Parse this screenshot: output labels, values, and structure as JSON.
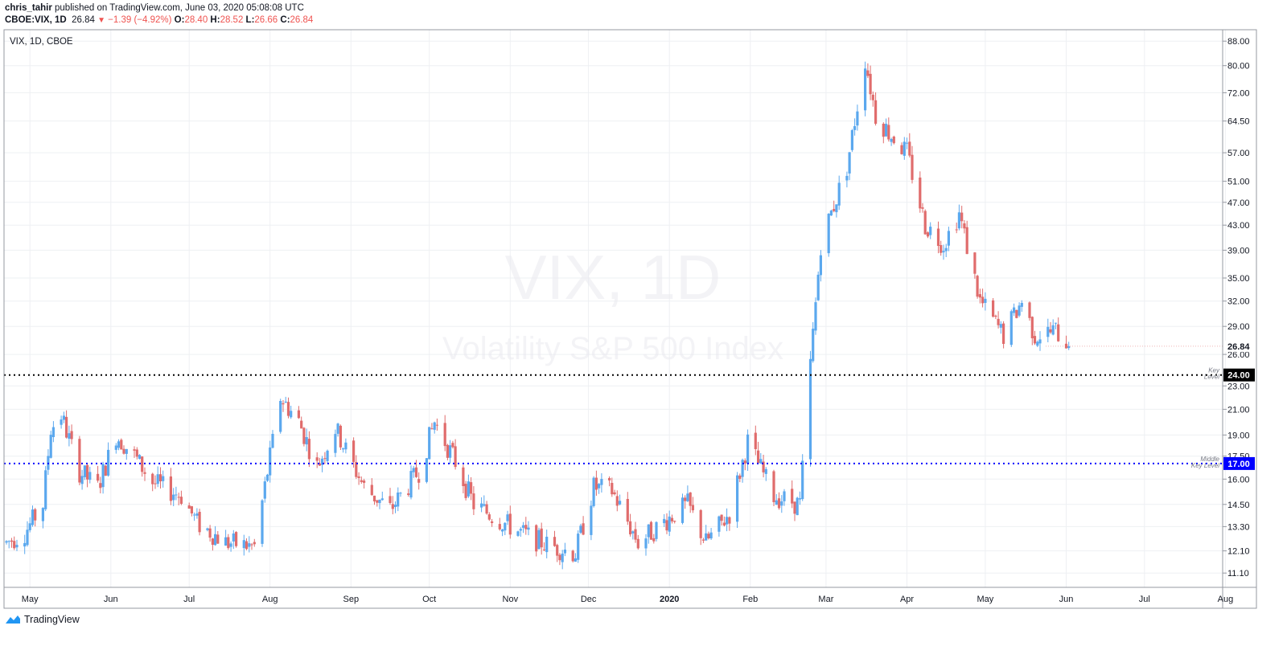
{
  "header": {
    "author": "chris_tahir",
    "published_text": "published on TradingView.com, June 03, 2020 05:08:08 UTC",
    "symbol": "CBOE:VIX, 1D",
    "last": "26.84",
    "change": "−1.39 (−4.92%)",
    "o_label": "O:",
    "o_value": "28.40",
    "h_label": "H:",
    "h_value": "28.52",
    "l_label": "L:",
    "l_value": "26.66",
    "c_label": "C:",
    "c_value": "26.84"
  },
  "chart_label": "VIX, 1D, CBOE",
  "watermark": {
    "title": "VIX, 1D",
    "subtitle": "Volatility S&P 500 Index"
  },
  "footer": {
    "brand": "TradingView"
  },
  "colors": {
    "up": "#5ba8ee",
    "down": "#e06c6c",
    "key": "#000000",
    "middle": "#0000ff"
  },
  "chart_data": {
    "type": "candlestick",
    "scale": "log",
    "y_ticks": [
      "88.00",
      "80.00",
      "72.00",
      "64.50",
      "57.00",
      "51.00",
      "47.00",
      "43.00",
      "39.00",
      "35.00",
      "32.00",
      "29.00",
      "26.00",
      "23.00",
      "21.00",
      "19.00",
      "17.50",
      "16.00",
      "14.50",
      "13.30",
      "12.10",
      "11.10"
    ],
    "x_labels": [
      "May",
      "Jun",
      "Jul",
      "Aug",
      "Sep",
      "Oct",
      "Nov",
      "Dec",
      "2020",
      "Feb",
      "Mar",
      "Apr",
      "May",
      "Jun",
      "Jul",
      "Aug"
    ],
    "last_price": "26.84",
    "levels": [
      {
        "name": "Key Level",
        "line1": "Key",
        "line2": "Level",
        "value": 24.0,
        "label": "24.00",
        "color": "#000000"
      },
      {
        "name": "Middle Key Level",
        "line1": "Middle",
        "line2": "Key Level",
        "value": 17.0,
        "label": "17.00",
        "color": "#0000ff"
      }
    ],
    "anchors": [
      [
        "2019-04-22",
        12.5
      ],
      [
        "2019-04-29",
        13.0
      ],
      [
        "2019-05-06",
        14.5
      ],
      [
        "2019-05-09",
        19.5
      ],
      [
        "2019-05-13",
        20.5
      ],
      [
        "2019-05-20",
        16.5
      ],
      [
        "2019-05-27",
        15.5
      ],
      [
        "2019-06-03",
        19.0
      ],
      [
        "2019-06-10",
        17.5
      ],
      [
        "2019-06-17",
        15.8
      ],
      [
        "2019-06-28",
        15.0
      ],
      [
        "2019-07-04",
        13.5
      ],
      [
        "2019-07-15",
        12.5
      ],
      [
        "2019-07-26",
        12.3
      ],
      [
        "2019-08-05",
        22.0
      ],
      [
        "2019-08-12",
        20.0
      ],
      [
        "2019-08-19",
        16.8
      ],
      [
        "2019-08-26",
        19.5
      ],
      [
        "2019-09-06",
        15.5
      ],
      [
        "2019-09-16",
        14.2
      ],
      [
        "2019-09-27",
        16.5
      ],
      [
        "2019-10-03",
        20.0
      ],
      [
        "2019-10-10",
        17.5
      ],
      [
        "2019-10-18",
        14.5
      ],
      [
        "2019-11-05",
        13.0
      ],
      [
        "2019-11-15",
        12.4
      ],
      [
        "2019-11-26",
        12.0
      ],
      [
        "2019-12-03",
        15.5
      ],
      [
        "2019-12-10",
        15.3
      ],
      [
        "2019-12-20",
        12.5
      ],
      [
        "2020-01-03",
        14.0
      ],
      [
        "2020-01-08",
        14.5
      ],
      [
        "2020-01-15",
        12.5
      ],
      [
        "2020-01-24",
        14.0
      ],
      [
        "2020-01-31",
        18.5
      ],
      [
        "2020-02-10",
        15.0
      ],
      [
        "2020-02-20",
        14.5
      ],
      [
        "2020-02-24",
        25.0
      ],
      [
        "2020-02-28",
        40.0
      ],
      [
        "2020-03-09",
        54.0
      ],
      [
        "2020-03-16",
        82.0
      ],
      [
        "2020-03-20",
        66.0
      ],
      [
        "2020-03-26",
        61.0
      ],
      [
        "2020-04-01",
        57.0
      ],
      [
        "2020-04-08",
        43.0
      ],
      [
        "2020-04-15",
        40.0
      ],
      [
        "2020-04-21",
        45.0
      ],
      [
        "2020-04-29",
        32.0
      ],
      [
        "2020-05-08",
        28.0
      ],
      [
        "2020-05-15",
        32.0
      ],
      [
        "2020-05-20",
        28.0
      ],
      [
        "2020-05-28",
        28.5
      ],
      [
        "2020-06-02",
        27.0
      ]
    ]
  }
}
